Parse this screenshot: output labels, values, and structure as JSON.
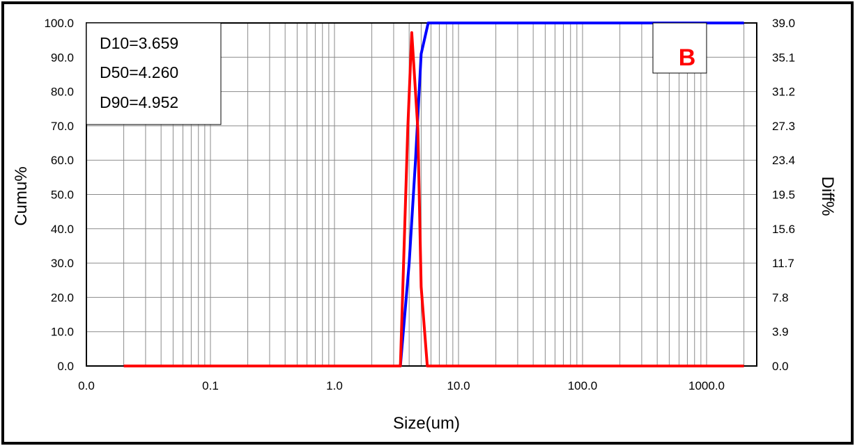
{
  "chart_data": {
    "type": "line",
    "xlabel": "Size(um)",
    "ylabel_left": "Cumu%",
    "ylabel_right": "Diff%",
    "x_scale": "log",
    "x_tick_labels": [
      "0.0",
      "0.1",
      "1.0",
      "10.0",
      "100.0",
      "1000.0"
    ],
    "y_left_tick_labels": [
      "0.0",
      "10.0",
      "20.0",
      "30.0",
      "40.0",
      "50.0",
      "60.0",
      "70.0",
      "80.0",
      "90.0",
      "100.0"
    ],
    "y_right_tick_labels": [
      "0.0",
      "3.9",
      "7.8",
      "11.7",
      "15.6",
      "19.5",
      "23.4",
      "27.3",
      "31.2",
      "35.1",
      "39.0"
    ],
    "ylim_left": [
      0,
      100
    ],
    "ylim_right": [
      0,
      39
    ],
    "grid": true,
    "stats": [
      "D10=3.659",
      "D50=4.260",
      "D90=4.952"
    ],
    "panel_label": "B",
    "series": [
      {
        "axis": "left",
        "color": "#0000ff",
        "x": [
          0.02,
          3.2,
          3.4,
          4.0,
          4.5,
          5.0,
          5.7,
          2000
        ],
        "values": [
          0,
          0,
          0,
          30,
          60,
          91,
          100,
          100
        ]
      },
      {
        "axis": "right",
        "color": "#ff0000",
        "x": [
          0.02,
          3.2,
          3.4,
          3.9,
          4.2,
          4.7,
          5.0,
          5.6,
          2000
        ],
        "values": [
          0,
          0,
          0,
          27,
          37.9,
          27,
          9,
          0,
          0
        ]
      }
    ]
  },
  "colors": {
    "cumulative": "#0000ff",
    "differential": "#ff0000",
    "panel_label": "#ff0000"
  }
}
